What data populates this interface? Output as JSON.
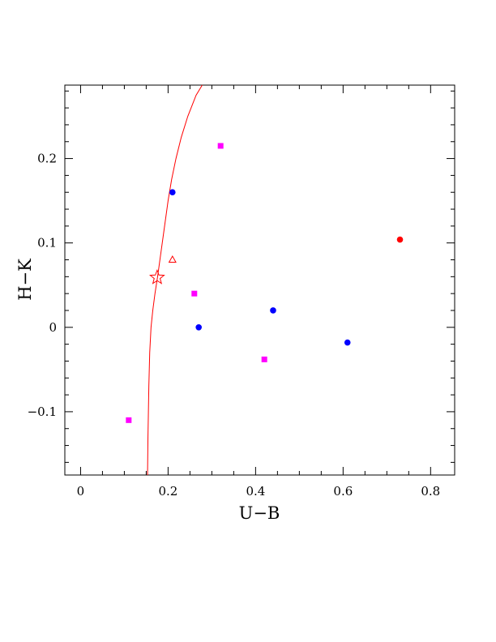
{
  "chart_data": {
    "type": "scatter",
    "title": "",
    "xlabel": "U−B",
    "ylabel": "H−K",
    "xlim": [
      -0.036,
      0.855
    ],
    "ylim": [
      -0.175,
      0.287
    ],
    "grid": false,
    "x_ticks": [
      0,
      0.2,
      0.4,
      0.6,
      0.8
    ],
    "x_tick_labels": [
      "0",
      "0.2",
      "0.4",
      "0.6",
      "0.8"
    ],
    "y_ticks": [
      -0.1,
      0,
      0.1,
      0.2
    ],
    "y_tick_labels": [
      "−0.1",
      "0",
      "0.1",
      "0.2"
    ],
    "series": [
      {
        "marker": "square",
        "color": "#ff00ff",
        "points": [
          [
            0.11,
            -0.11
          ],
          [
            0.26,
            0.04
          ],
          [
            0.32,
            0.215
          ],
          [
            0.42,
            -0.038
          ]
        ]
      },
      {
        "marker": "circle",
        "color": "#0000ff",
        "points": [
          [
            0.21,
            0.16
          ],
          [
            0.27,
            0.0
          ],
          [
            0.44,
            0.02
          ],
          [
            0.61,
            -0.018
          ]
        ]
      },
      {
        "marker": "circle",
        "color": "#ff0000",
        "points": [
          [
            0.73,
            0.104
          ]
        ]
      },
      {
        "marker": "open-triangle",
        "color": "#ff0000",
        "points": [
          [
            0.21,
            0.08
          ]
        ]
      },
      {
        "marker": "open-star",
        "color": "#ff0000",
        "points": [
          [
            0.175,
            0.059
          ]
        ]
      }
    ],
    "curve": {
      "color": "#ff0000",
      "points": [
        [
          0.153,
          -0.175
        ],
        [
          0.154,
          -0.13
        ],
        [
          0.156,
          -0.07
        ],
        [
          0.158,
          -0.03
        ],
        [
          0.161,
          0.0
        ],
        [
          0.165,
          0.02
        ],
        [
          0.17,
          0.04
        ],
        [
          0.176,
          0.06
        ],
        [
          0.184,
          0.09
        ],
        [
          0.192,
          0.12
        ],
        [
          0.2,
          0.15
        ],
        [
          0.208,
          0.175
        ],
        [
          0.218,
          0.2
        ],
        [
          0.23,
          0.225
        ],
        [
          0.245,
          0.25
        ],
        [
          0.264,
          0.275
        ],
        [
          0.278,
          0.287
        ]
      ]
    }
  }
}
